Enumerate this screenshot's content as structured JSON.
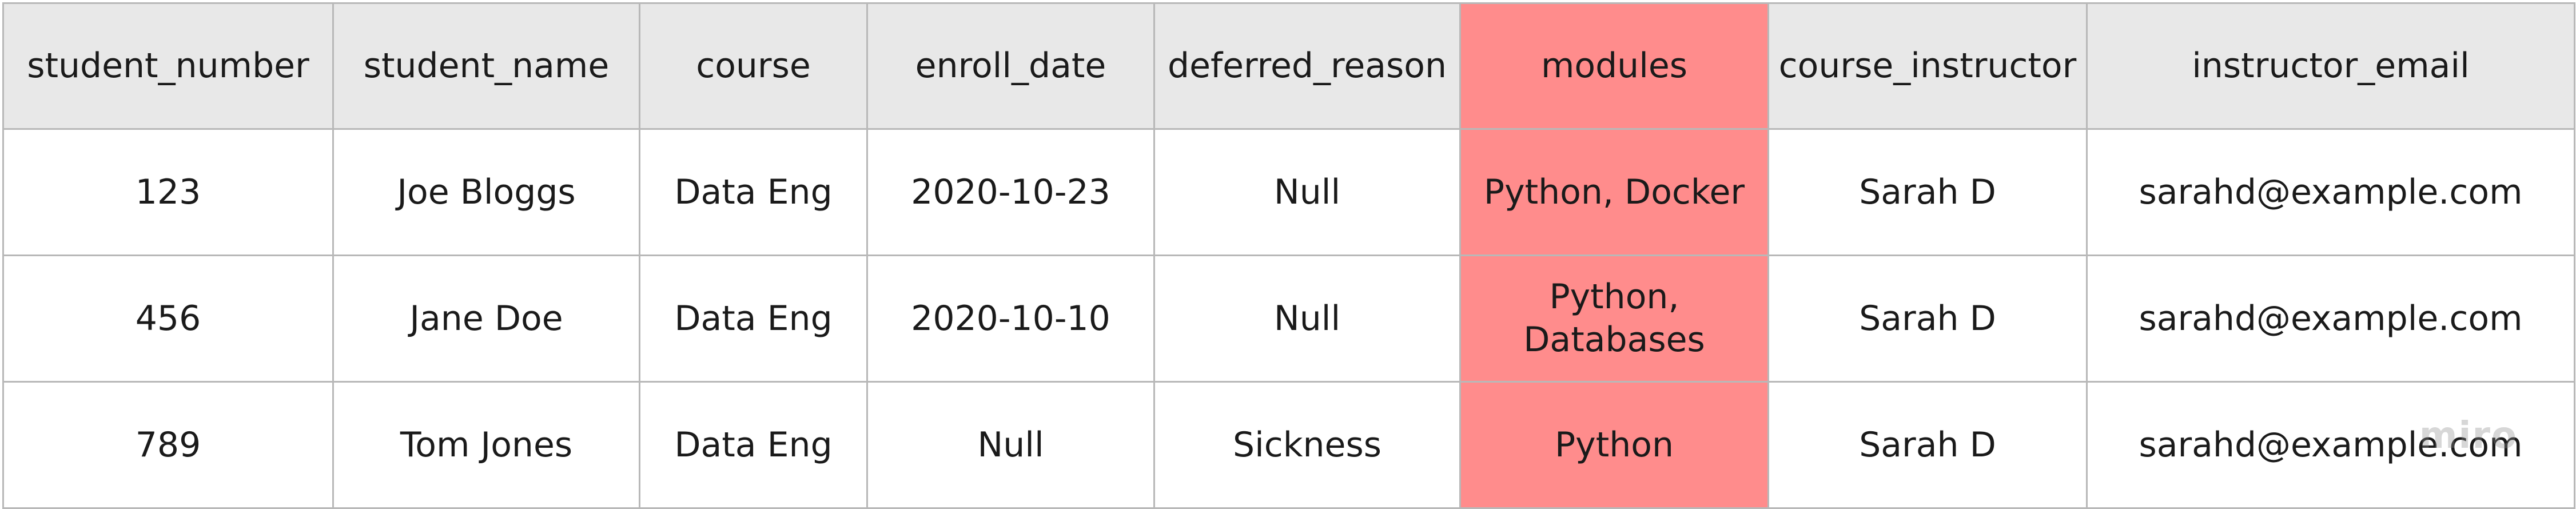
{
  "table": {
    "columns": [
      {
        "key": "student_number",
        "label": "student_number"
      },
      {
        "key": "student_name",
        "label": "student_name"
      },
      {
        "key": "course",
        "label": "course"
      },
      {
        "key": "enroll_date",
        "label": "enroll_date"
      },
      {
        "key": "deferred_reason",
        "label": "deferred_reason"
      },
      {
        "key": "modules",
        "label": "modules",
        "highlighted": true
      },
      {
        "key": "course_instructor",
        "label": "course_instructor"
      },
      {
        "key": "instructor_email",
        "label": "instructor_email"
      }
    ],
    "rows": [
      {
        "student_number": "123",
        "student_name": "Joe Bloggs",
        "course": "Data Eng",
        "enroll_date": "2020-10-23",
        "deferred_reason": "Null",
        "modules": "Python, Docker",
        "course_instructor": "Sarah D",
        "instructor_email": "sarahd@example.com"
      },
      {
        "student_number": "456",
        "student_name": "Jane Doe",
        "course": "Data Eng",
        "enroll_date": "2020-10-10",
        "deferred_reason": "Null",
        "modules": "Python, Databases",
        "course_instructor": "Sarah D",
        "instructor_email": "sarahd@example.com"
      },
      {
        "student_number": "789",
        "student_name": "Tom Jones",
        "course": "Data Eng",
        "enroll_date": "Null",
        "deferred_reason": "Sickness",
        "modules": "Python",
        "course_instructor": "Sarah D",
        "instructor_email": "sarahd@example.com"
      }
    ],
    "highlight_color": "#ff8c8c",
    "header_color": "#e8e8e8",
    "border_color": "#b8b8b8"
  },
  "watermark": "miro"
}
